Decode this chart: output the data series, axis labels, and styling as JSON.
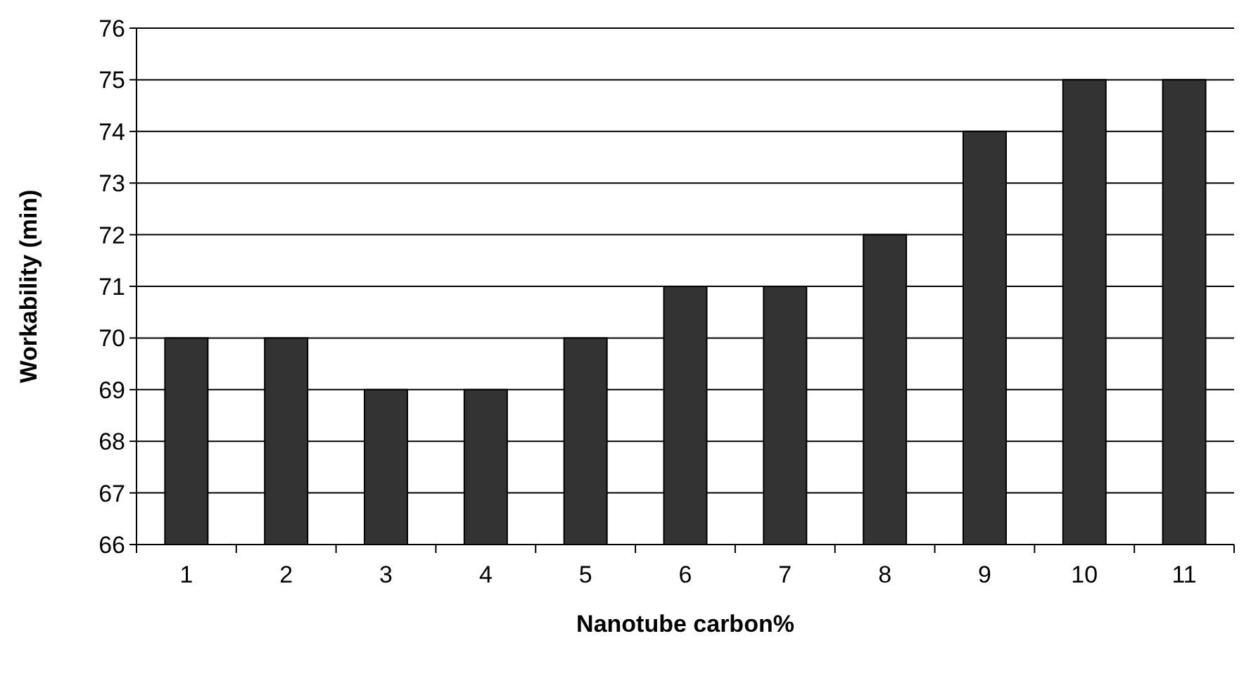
{
  "chart_data": {
    "type": "bar",
    "xlabel": "Nanotube carbon%",
    "ylabel": "Workability (min)",
    "categories": [
      "1",
      "2",
      "3",
      "4",
      "5",
      "6",
      "7",
      "8",
      "9",
      "10",
      "11"
    ],
    "values": [
      70,
      70,
      69,
      69,
      70,
      71,
      71,
      72,
      74,
      75,
      75
    ],
    "color": "#333333",
    "ylim": [
      66,
      76
    ],
    "yticks": [
      66,
      67,
      68,
      69,
      70,
      71,
      72,
      73,
      74,
      75,
      76
    ],
    "grid": "y"
  }
}
